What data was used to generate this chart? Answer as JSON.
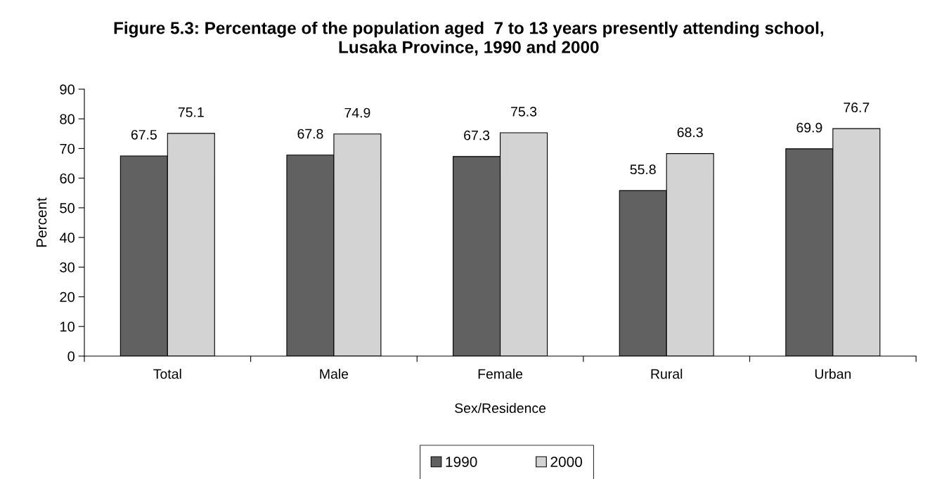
{
  "chart_data": {
    "type": "bar",
    "title": "Figure 5.3: Percentage of the population aged  7 to 13 years presently attending school,\nLusaka Province, 1990 and 2000",
    "xlabel": "Sex/Residence",
    "ylabel": "Percent",
    "categories": [
      "Total",
      "Male",
      "Female",
      "Rural",
      "Urban"
    ],
    "series": [
      {
        "name": "1990",
        "color": "#616161",
        "values": [
          67.5,
          67.8,
          67.3,
          55.8,
          69.9
        ]
      },
      {
        "name": "2000",
        "color": "#d3d3d3",
        "values": [
          75.1,
          74.9,
          75.3,
          68.3,
          76.7
        ]
      }
    ],
    "ylim": [
      0,
      90
    ],
    "yticks": [
      0,
      10,
      20,
      30,
      40,
      50,
      60,
      70,
      80,
      90
    ],
    "grid": false,
    "legend": "bottom",
    "data_labels": true
  }
}
